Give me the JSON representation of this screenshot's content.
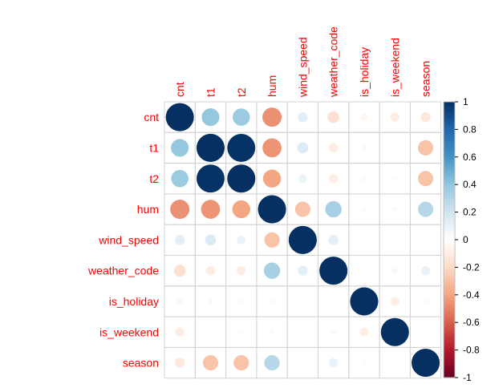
{
  "chart_data": {
    "type": "heatmap",
    "variables": [
      "cnt",
      "t1",
      "t2",
      "hum",
      "wind_speed",
      "weather_code",
      "is_holiday",
      "is_weekend",
      "season"
    ],
    "matrix": [
      [
        1.0,
        0.39,
        0.37,
        -0.46,
        0.12,
        -0.17,
        -0.05,
        -0.1,
        -0.12
      ],
      [
        0.39,
        1.0,
        0.99,
        -0.45,
        0.15,
        -0.1,
        -0.04,
        -0.01,
        -0.29
      ],
      [
        0.37,
        0.99,
        1.0,
        -0.4,
        0.09,
        -0.1,
        -0.04,
        -0.02,
        -0.29
      ],
      [
        -0.46,
        -0.45,
        -0.4,
        1.0,
        -0.29,
        0.33,
        0.03,
        0.03,
        0.29
      ],
      [
        0.12,
        0.15,
        0.09,
        -0.29,
        1.0,
        0.12,
        0.01,
        0.01,
        0.01
      ],
      [
        -0.17,
        -0.1,
        -0.1,
        0.33,
        0.12,
        1.0,
        0.01,
        0.04,
        0.1
      ],
      [
        -0.05,
        -0.04,
        -0.04,
        0.03,
        0.01,
        0.01,
        1.0,
        -0.09,
        -0.03
      ],
      [
        -0.1,
        -0.01,
        -0.02,
        0.03,
        0.01,
        0.04,
        -0.09,
        1.0,
        0.01
      ],
      [
        -0.12,
        -0.29,
        -0.29,
        0.29,
        0.01,
        0.1,
        -0.03,
        0.01,
        1.0
      ]
    ],
    "colorbar": {
      "range": [
        -1,
        1
      ],
      "ticks": [
        "1",
        "0.8",
        "0.6",
        "0.4",
        "0.2",
        "0",
        "-0.2",
        "-0.4",
        "-0.6",
        "-0.8",
        "-1"
      ]
    },
    "title": "",
    "grid": true,
    "legend": "right"
  },
  "colors": {
    "label": "#ff0000",
    "grid": "#d3d3d3"
  }
}
